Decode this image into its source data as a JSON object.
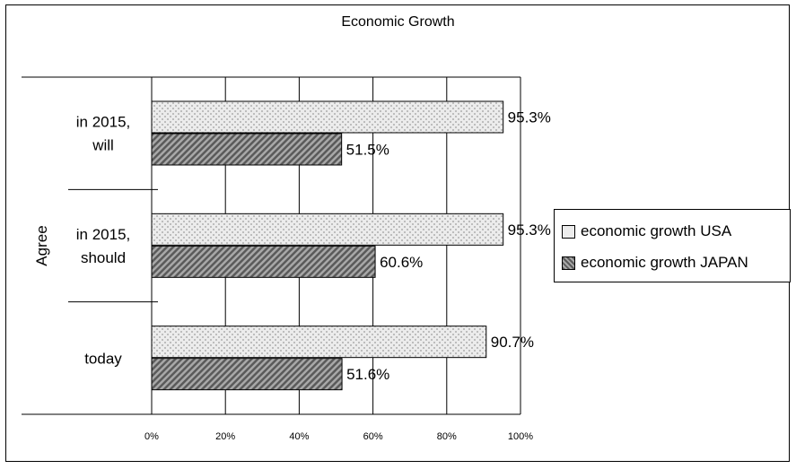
{
  "chart_data": {
    "type": "bar",
    "orientation": "horizontal",
    "title": "Economic Growth",
    "ylabel": "Agree",
    "categories": [
      "in 2015, will",
      "in 2015, should",
      "today"
    ],
    "category_lines": [
      [
        "in 2015,",
        "will"
      ],
      [
        "in 2015,",
        "should"
      ],
      [
        "today"
      ]
    ],
    "series": [
      {
        "name": "economic growth USA",
        "values": [
          95.3,
          95.3,
          90.7
        ],
        "labels": [
          "95.3%",
          "95.3%",
          "90.7%"
        ],
        "pattern": "dotted-light"
      },
      {
        "name": "economic growth JAPAN",
        "values": [
          51.5,
          60.6,
          51.6
        ],
        "labels": [
          "51.5%",
          "60.6%",
          "51.6%"
        ],
        "pattern": "diagonal-dark"
      }
    ],
    "xlim": [
      0,
      100
    ],
    "xticks": [
      "0%",
      "20%",
      "40%",
      "60%",
      "80%",
      "100%"
    ],
    "grid": true,
    "legend_position": "right"
  },
  "colors": {
    "usa_fill": "#e6e6e6",
    "japan_fill": "#8a8a8a",
    "gridline": "#000000"
  }
}
